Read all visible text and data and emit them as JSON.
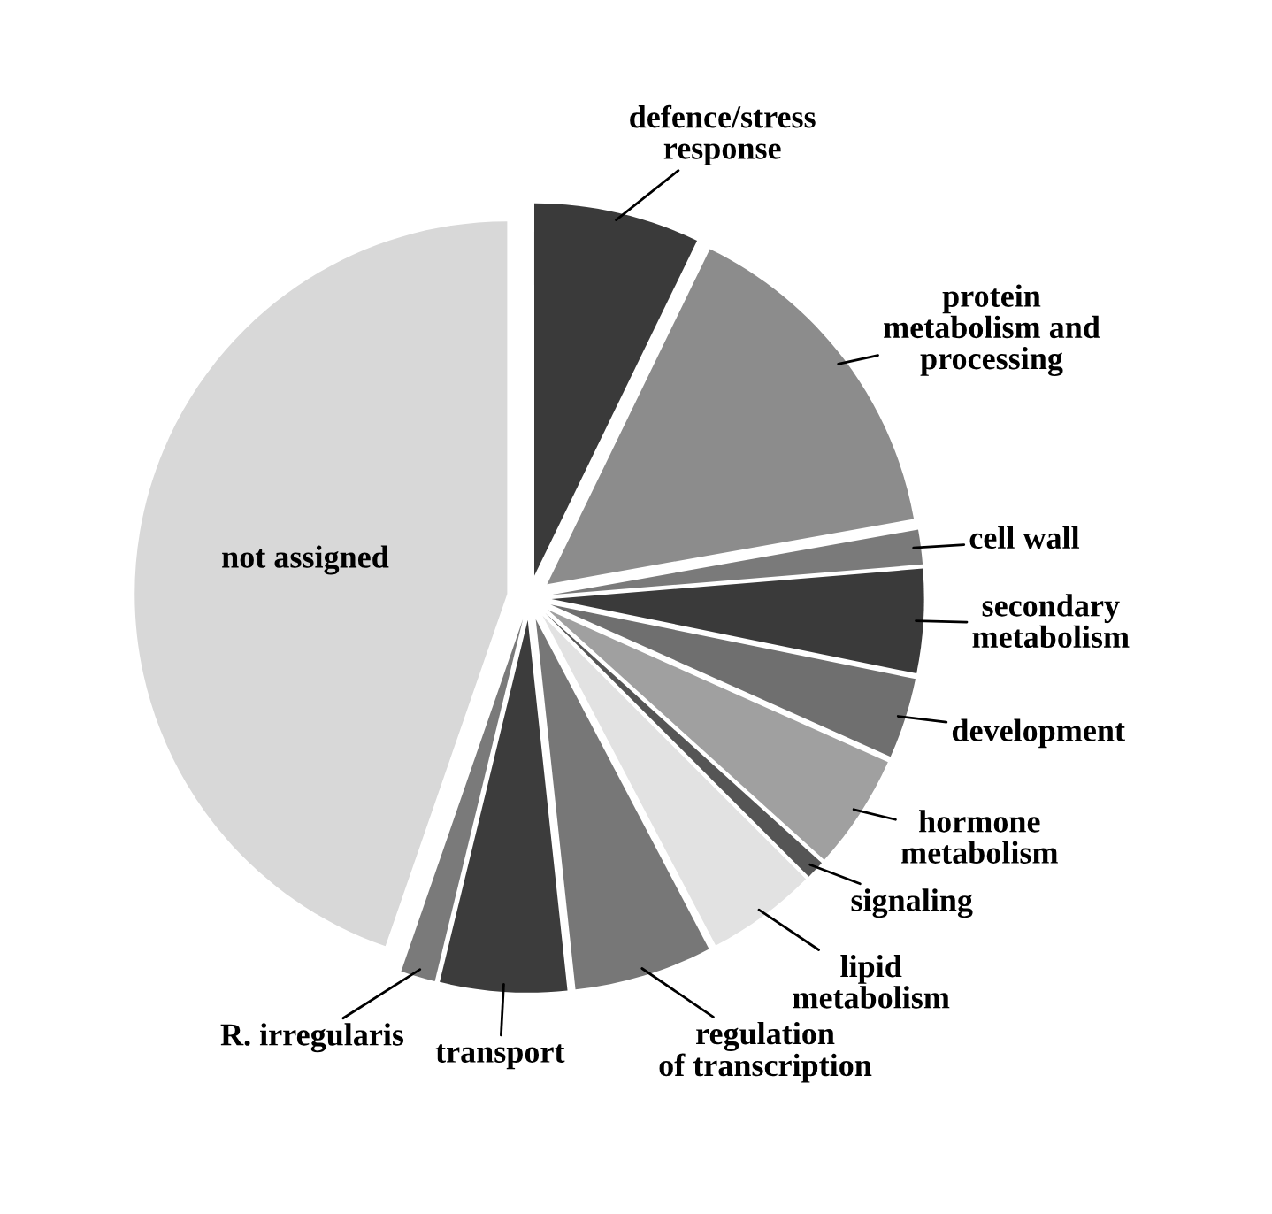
{
  "chart_data": {
    "type": "pie",
    "categories": [
      "defence/stress\nresponse",
      "protein\nmetabolism and\nprocessing",
      "cell wall",
      "secondary\nmetabolism",
      "development",
      "hormone\nmetabolism",
      "signaling",
      "lipid\nmetabolism",
      "regulation\nof transcription",
      "transport",
      "R. irregularis",
      "not assigned"
    ],
    "values": [
      7.2,
      15,
      1.5,
      4.5,
      3.5,
      5,
      0.8,
      4.8,
      6,
      5.5,
      1.5,
      44.7
    ],
    "colors": [
      "#3a3a3a",
      "#8c8c8c",
      "#7a7a7a",
      "#3a3a3a",
      "#6f6f6f",
      "#a0a0a0",
      "#555555",
      "#e2e2e2",
      "#777777",
      "#3c3c3c",
      "#7a7a7a",
      "#d8d8d8"
    ]
  }
}
